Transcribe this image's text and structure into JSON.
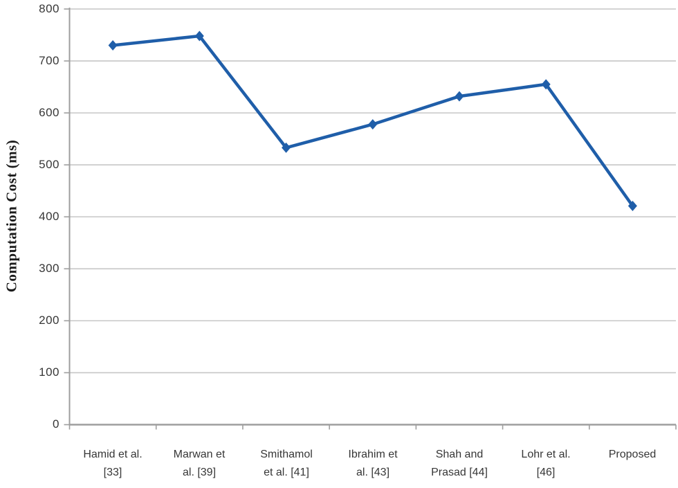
{
  "chart_data": {
    "type": "line",
    "title": "",
    "xlabel": "",
    "ylabel": "Computation Cost (ms)",
    "ylim": [
      0,
      800
    ],
    "ytick_step": 100,
    "ytick_labels": [
      "0",
      "100",
      "200",
      "300",
      "400",
      "500",
      "600",
      "700",
      "800"
    ],
    "categories": [
      "Hamid et al. [33]",
      "Marwan et al. [39]",
      "Smithamol et al. [41]",
      "Ibrahim et al. [43]",
      "Shah and Prasad [44]",
      "Lohr et al. [46]",
      "Proposed"
    ],
    "categories_display": [
      "Hamid et al.\n[33]",
      "Marwan et\nal. [39]",
      "Smithamol\net al. [41]",
      "Ibrahim et\nal. [43]",
      "Shah and\nPrasad [44]",
      "Lohr et al.\n[46]",
      "Proposed"
    ],
    "series": [
      {
        "name": "Computation Cost (ms)",
        "values": [
          730,
          748,
          533,
          578,
          632,
          655,
          421
        ]
      }
    ],
    "marker": "diamond",
    "grid": true,
    "legend": "none",
    "colors": {
      "line": "#1f5ea9",
      "gridline": "#c6c6c6",
      "axis": "#9e9e9e",
      "tick_text": "#363636",
      "ylabel_text": "#1c1c1c",
      "background": "#ffffff"
    }
  }
}
